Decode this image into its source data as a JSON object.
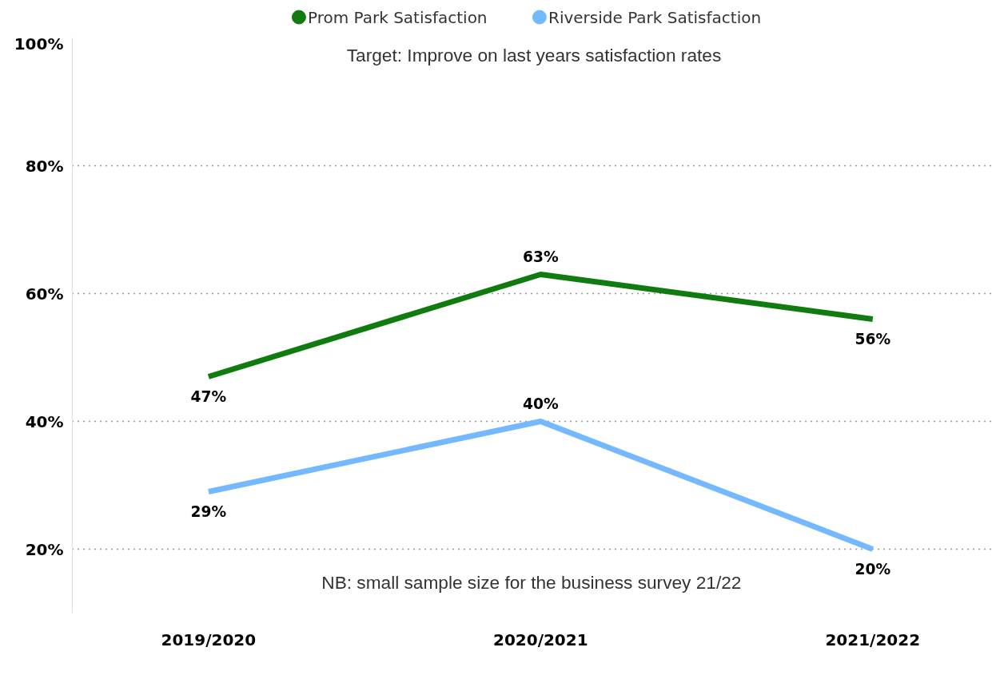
{
  "chart_data": {
    "type": "line",
    "categories": [
      "2019/2020",
      "2020/2021",
      "2021/2022"
    ],
    "series": [
      {
        "name": "Prom Park Satisfaction",
        "color": "#107c10",
        "values": [
          47,
          63,
          56
        ],
        "value_labels": [
          "47%",
          "63%",
          "56%"
        ]
      },
      {
        "name": "Riverside Park Satisfaction",
        "color": "#74b9ff",
        "values": [
          29,
          40,
          20
        ],
        "value_labels": [
          "29%",
          "40%",
          "20%"
        ]
      }
    ],
    "ylim": [
      10,
      100
    ],
    "yticks": [
      {
        "value": 20,
        "label": "20%"
      },
      {
        "value": 40,
        "label": "40%"
      },
      {
        "value": 60,
        "label": "60%"
      },
      {
        "value": 80,
        "label": "80%"
      },
      {
        "value": 100,
        "label": "100%"
      }
    ],
    "data_labels": true,
    "grid": "y",
    "legend": "top",
    "annotations": [
      "Target: Improve on last years satisfaction rates",
      "NB: small sample size for the business survey  21/22"
    ]
  }
}
